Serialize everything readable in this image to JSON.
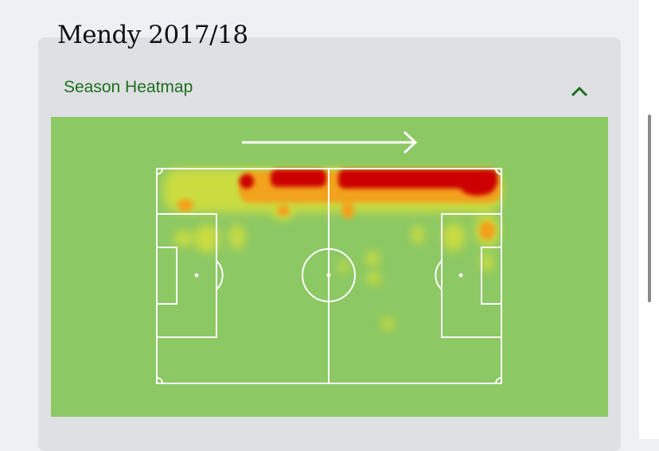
{
  "header": {
    "title": "Mendy 2017/18"
  },
  "panel": {
    "title": "Season Heatmap"
  }
}
